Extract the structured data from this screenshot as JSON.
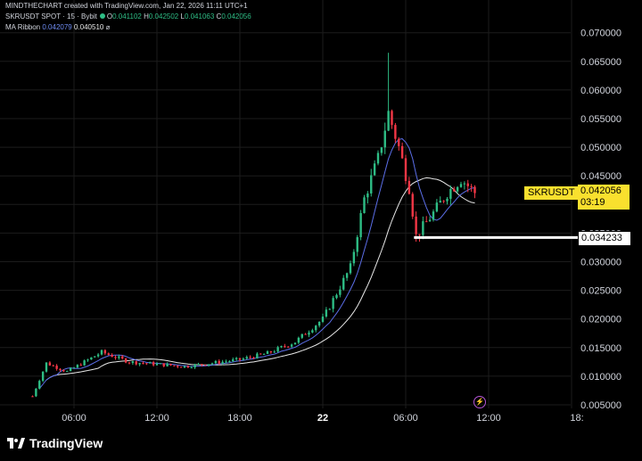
{
  "header": {
    "attribution": "MINDTHECHART created with TradingView.com, Jan 22, 2026 11:11 UTC+1",
    "symbol_line": "SKRUSDT SPOT · 15 · Bybit",
    "o_label": "O",
    "o_value": "0.041102",
    "h_label": "H",
    "h_value": "0.042502",
    "l_label": "L",
    "l_value": "0.041063",
    "c_label": "C",
    "c_value": "0.042056",
    "indicator_name": "MA Ribbon",
    "ma1_value": "0.042079",
    "ma2_value": "0.040510",
    "indicator_icon": "null-set-icon"
  },
  "price_axis": {
    "labels": [
      "0.070000",
      "0.065000",
      "0.060000",
      "0.055000",
      "0.050000",
      "0.045000",
      "0.040000",
      "0.035000",
      "0.030000",
      "0.025000",
      "0.020000",
      "0.015000",
      "0.010000",
      "0.005000"
    ],
    "values": [
      0.07,
      0.065,
      0.06,
      0.055,
      0.05,
      0.045,
      0.04,
      0.035,
      0.03,
      0.025,
      0.02,
      0.015,
      0.01,
      0.005
    ]
  },
  "time_axis": {
    "labels": [
      "06:00",
      "12:00",
      "18:00",
      "22",
      "06:00",
      "12:00",
      "18:"
    ],
    "bold": [
      false,
      false,
      false,
      true,
      false,
      false,
      false
    ]
  },
  "tags": {
    "symbol": "SKRUSDT",
    "last_price": "0.042056",
    "countdown": "03:19",
    "level_price": "0.034233"
  },
  "level_line": {
    "price": 0.034233
  },
  "colors": {
    "up": "#2ebd85",
    "down": "#f23645",
    "ma_fast": "#5b6ee8",
    "ma_slow": "#e8e8e8",
    "tag_yellow": "#f9e02e",
    "grid": "#1c1c1c"
  },
  "footer": {
    "brand": "TradingView",
    "brand_icon": "tradingview-logo-icon"
  },
  "chart_data": {
    "type": "candlestick",
    "timeframe": "15",
    "series_anchors": [
      {
        "t": "Jan 21 03:00",
        "price": 0.0065
      },
      {
        "t": "Jan 21 04:00",
        "price": 0.0123
      },
      {
        "t": "Jan 21 05:30",
        "price": 0.0108
      },
      {
        "t": "Jan 21 08:00",
        "price": 0.0142
      },
      {
        "t": "Jan 21 10:00",
        "price": 0.0125
      },
      {
        "t": "Jan 21 14:00",
        "price": 0.0117
      },
      {
        "t": "Jan 21 18:00",
        "price": 0.0129
      },
      {
        "t": "Jan 21 20:00",
        "price": 0.014
      },
      {
        "t": "Jan 21 22:00",
        "price": 0.016
      },
      {
        "t": "Jan 22 00:00",
        "price": 0.02
      },
      {
        "t": "Jan 22 01:00",
        "price": 0.0245
      },
      {
        "t": "Jan 22 02:00",
        "price": 0.029
      },
      {
        "t": "Jan 22 03:00",
        "price": 0.041
      },
      {
        "t": "Jan 22 04:00",
        "price": 0.048
      },
      {
        "t": "Jan 22 04:45",
        "price": 0.056
      },
      {
        "t": "Jan 22 05:30",
        "price": 0.05
      },
      {
        "t": "Jan 22 06:15",
        "price": 0.043
      },
      {
        "t": "Jan 22 06:45",
        "price": 0.0345
      },
      {
        "t": "Jan 22 08:00",
        "price": 0.0385
      },
      {
        "t": "Jan 22 09:00",
        "price": 0.042
      },
      {
        "t": "Jan 22 10:00",
        "price": 0.0445
      },
      {
        "t": "Jan 22 11:00",
        "price": 0.04206
      }
    ],
    "spike_high": 0.0665,
    "ylim": [
      0.005,
      0.0715
    ]
  }
}
